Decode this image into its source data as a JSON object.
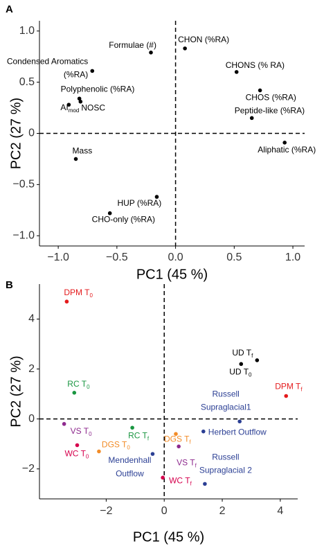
{
  "chart_data": [
    {
      "type": "scatter",
      "panel_label": "A",
      "x_label": "PC1 (45 %)",
      "y_label": "PC2 (27 %)",
      "xlim": [
        -1.16,
        1.1
      ],
      "ylim": [
        -1.1,
        1.1
      ],
      "zero_lines": true,
      "xticks": [
        {
          "value": -1,
          "label": "−1.0"
        },
        {
          "value": -0.5,
          "label": "−0.5"
        },
        {
          "value": 0,
          "label": "0.0"
        },
        {
          "value": 0.5,
          "label": "0.5"
        },
        {
          "value": 1,
          "label": "1.0"
        }
      ],
      "yticks": [
        {
          "value": -1,
          "label": "−1.0"
        },
        {
          "value": -0.5,
          "label": "−0.5"
        },
        {
          "value": 0,
          "label": "0"
        },
        {
          "value": 0.5,
          "label": "0.5"
        },
        {
          "value": 1,
          "label": "1.0"
        }
      ],
      "points": [
        {
          "label": "Formulae (#)",
          "x": -0.21,
          "y": 0.79,
          "color": "#000000"
        },
        {
          "label": "CHON (%RA)",
          "x": 0.08,
          "y": 0.83,
          "color": "#000000"
        },
        {
          "label": "Condensed Aromatics",
          "label2": "(%RA)",
          "x": -0.71,
          "y": 0.61,
          "color": "#000000"
        },
        {
          "label": "CHONS (% RA)",
          "x": 0.52,
          "y": 0.6,
          "color": "#000000"
        },
        {
          "label": "CHOS (%RA)",
          "x": 0.72,
          "y": 0.42,
          "color": "#000000"
        },
        {
          "label": "Polyphenolic (%RA)",
          "x": -0.82,
          "y": 0.34,
          "color": "#000000"
        },
        {
          "label": "AI",
          "sub": "mod",
          "x": -0.91,
          "y": 0.28,
          "color": "#000000"
        },
        {
          "label": "NOSC",
          "x": -0.81,
          "y": 0.31,
          "color": "#000000"
        },
        {
          "label": "Peptide-like (%RA)",
          "x": 0.65,
          "y": 0.15,
          "color": "#000000"
        },
        {
          "label": "Aliphatic (%RA)",
          "x": 0.93,
          "y": -0.09,
          "color": "#000000"
        },
        {
          "label": "Mass",
          "x": -0.85,
          "y": -0.25,
          "color": "#000000"
        },
        {
          "label": "HUP (%RA)",
          "x": -0.16,
          "y": -0.62,
          "color": "#000000"
        },
        {
          "label": "CHO-only (%RA)",
          "x": -0.56,
          "y": -0.78,
          "color": "#000000"
        }
      ]
    },
    {
      "type": "scatter",
      "panel_label": "B",
      "x_label": "PC1 (45 %)",
      "y_label": "PC2 (27 %)",
      "xlim": [
        -4.3,
        4.6
      ],
      "ylim": [
        -3.2,
        5.4
      ],
      "zero_lines": true,
      "xticks": [
        {
          "value": -2,
          "label": "−2"
        },
        0,
        2,
        4
      ],
      "yticks": [
        {
          "value": -2,
          "label": "−2"
        },
        0,
        2,
        4
      ],
      "points": [
        {
          "label": "DPM T",
          "sub": "0",
          "x": -3.36,
          "y": 4.7,
          "color": "#e41a1c"
        },
        {
          "label": "UD T",
          "sub": "f",
          "x": 3.2,
          "y": 2.35,
          "color": "#000000"
        },
        {
          "label": "UD T",
          "sub": "0",
          "x": 2.65,
          "y": 2.2,
          "color": "#000000"
        },
        {
          "label": "DPM T",
          "sub": "f",
          "x": 4.2,
          "y": 0.92,
          "color": "#e41a1c"
        },
        {
          "label": "RC T",
          "sub": "0",
          "x": -3.1,
          "y": 1.05,
          "color": "#1a9641"
        },
        {
          "label": "Russell",
          "label2": "Supraglacial1",
          "x": 2.6,
          "y": -0.1,
          "color": "#2b3f94"
        },
        {
          "label": "VS T",
          "sub": "0",
          "x": -3.45,
          "y": -0.2,
          "color": "#8e2a8e"
        },
        {
          "label": "RC T",
          "sub": "f",
          "x": -1.1,
          "y": -0.35,
          "color": "#1a9641"
        },
        {
          "label": "DGS T",
          "sub": "f",
          "x": 0.4,
          "y": -0.6,
          "color": "#f28c28"
        },
        {
          "label": "Herbert Outflow",
          "x": 1.35,
          "y": -0.5,
          "color": "#2b3f94"
        },
        {
          "label": "VS T",
          "sub": "f",
          "x": 0.5,
          "y": -1.1,
          "color": "#8e2a8e"
        },
        {
          "label": "WC T",
          "sub": "0",
          "x": -3.0,
          "y": -1.05,
          "color": "#d6004d"
        },
        {
          "label": "DGS T",
          "sub": "0",
          "x": -2.25,
          "y": -1.3,
          "color": "#f28c28"
        },
        {
          "label": "Mendenhall",
          "label2": "Outflow",
          "x": -0.4,
          "y": -1.4,
          "color": "#2b3f94"
        },
        {
          "label": "WC T",
          "sub": "f",
          "x": -0.05,
          "y": -2.35,
          "color": "#d6004d"
        },
        {
          "label": "Russell",
          "label2": "Supraglacial 2",
          "x": 1.4,
          "y": -2.6,
          "color": "#2b3f94"
        }
      ]
    }
  ]
}
